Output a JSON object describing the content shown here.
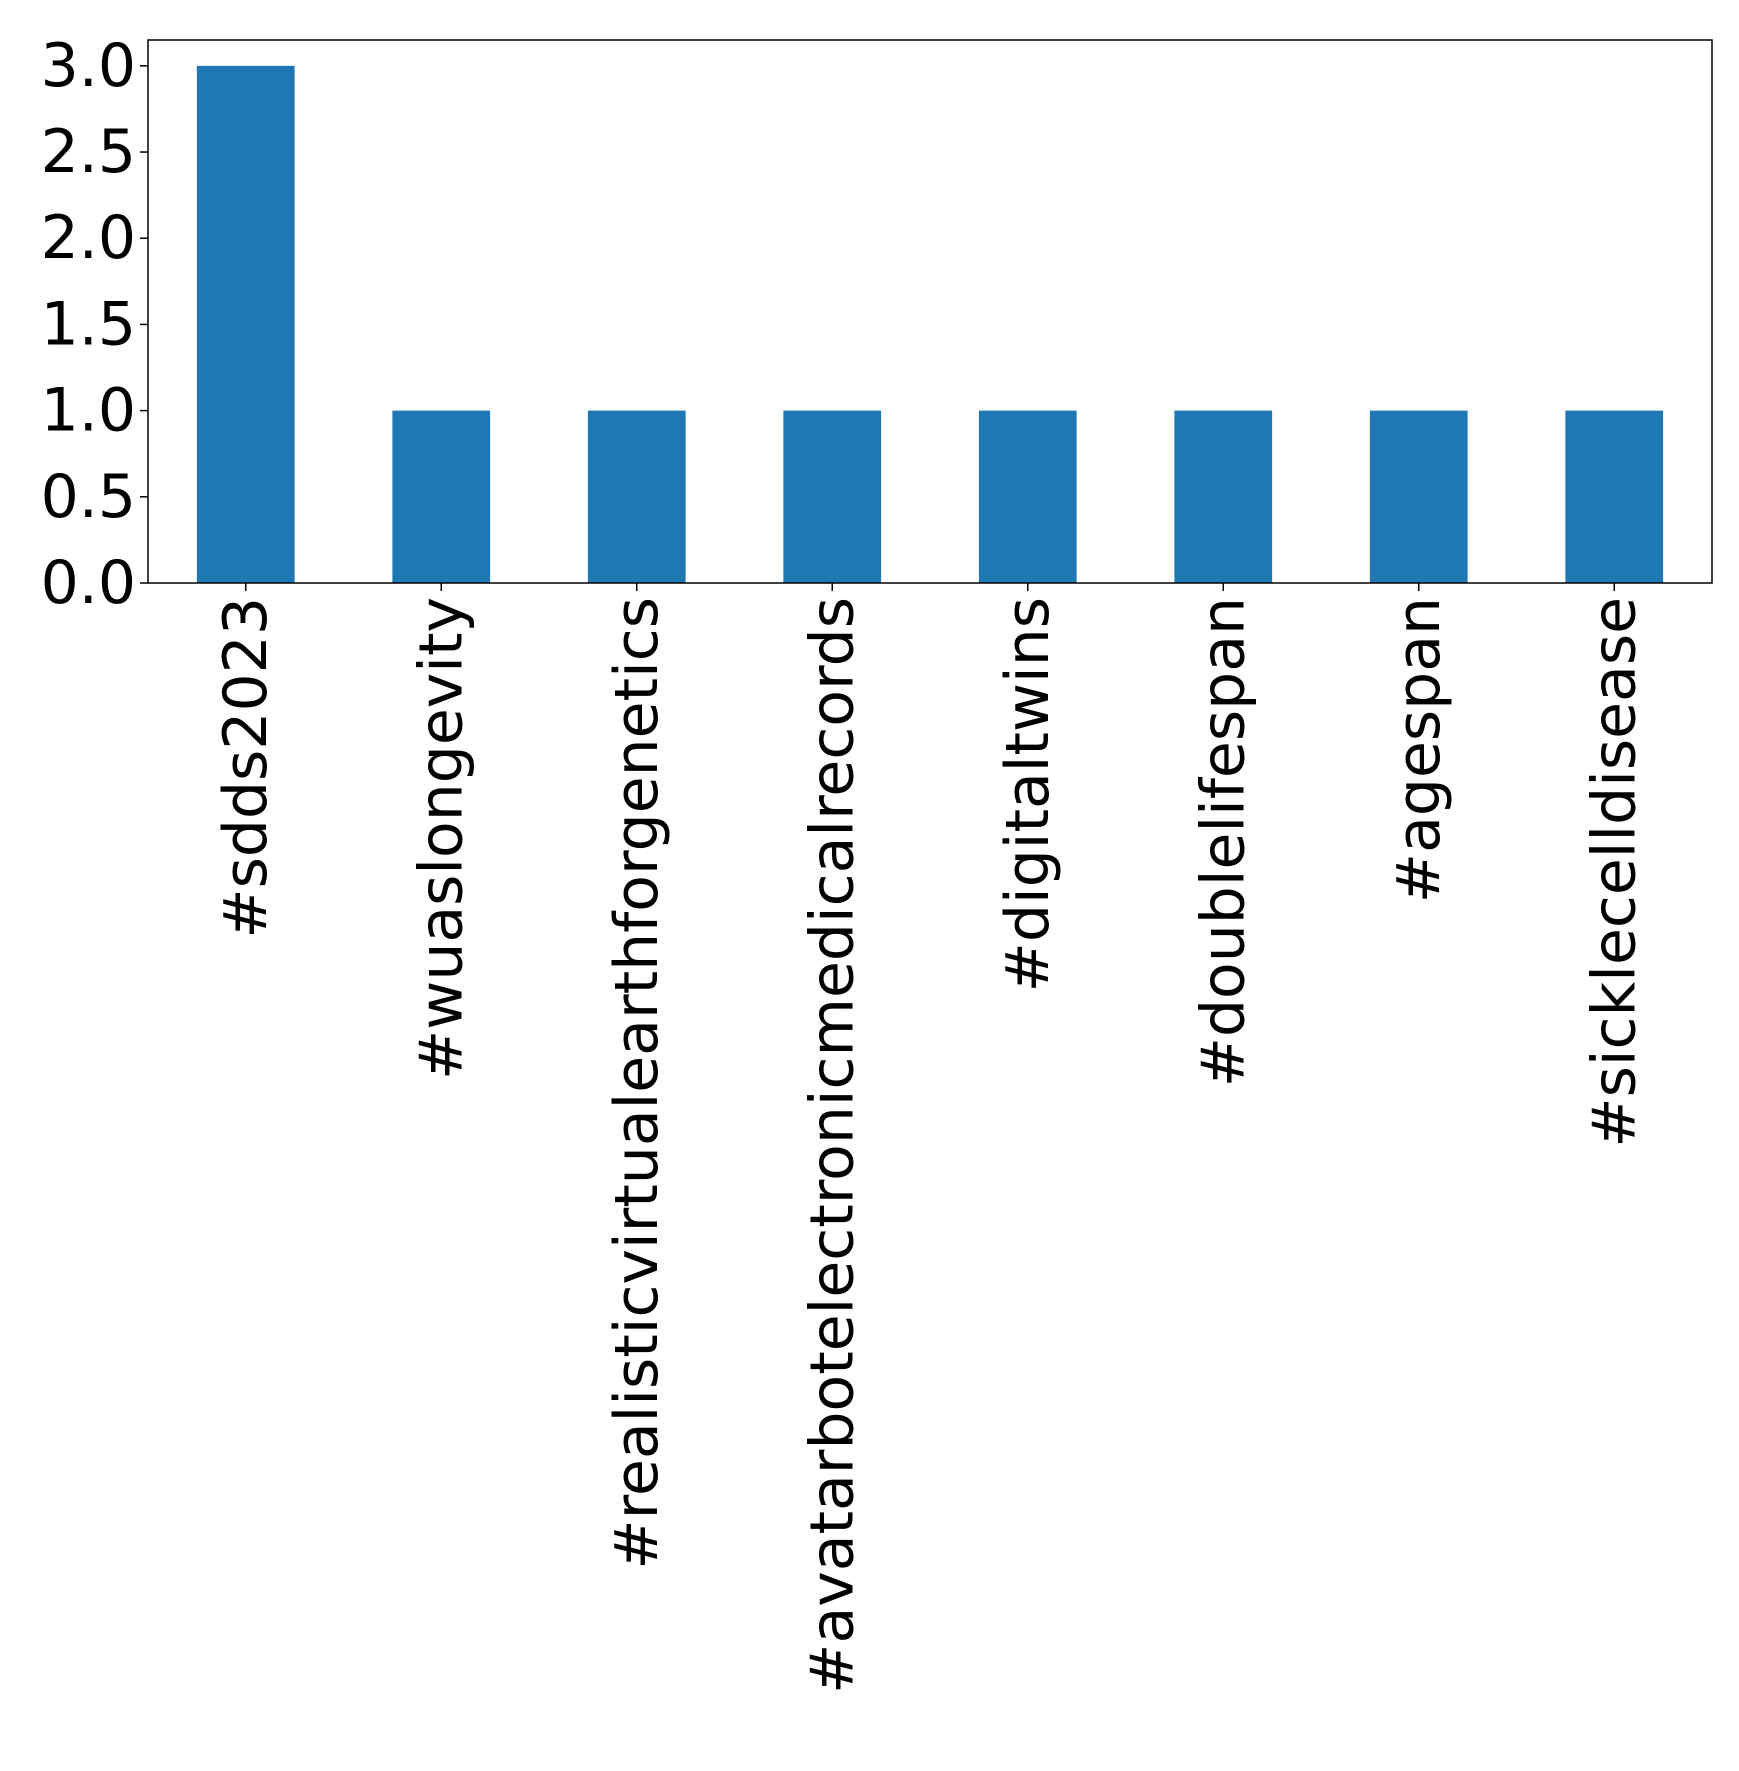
{
  "chart_data": {
    "type": "bar",
    "title": "",
    "xlabel": "",
    "ylabel": "",
    "categories": [
      "#sdds2023",
      "#wuaslongevity",
      "#realisticvirtualearthforgenetics",
      "#avatarbotelectronicmedicalrecords",
      "#digitaltwins",
      "#doublelifespan",
      "#agespan",
      "#sicklecelldisease"
    ],
    "values": [
      3,
      1,
      1,
      1,
      1,
      1,
      1,
      1
    ],
    "ylim": [
      0,
      3.15
    ],
    "yticks": [
      "0.0",
      "0.5",
      "1.0",
      "1.5",
      "2.0",
      "2.5",
      "3.0"
    ],
    "grid": false,
    "legend": "none",
    "bar_color": "#1f77b4"
  }
}
